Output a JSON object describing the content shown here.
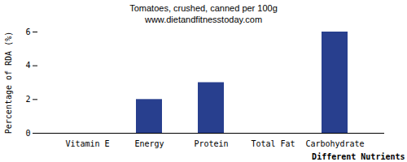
{
  "chart_data": {
    "type": "bar",
    "title": "Tomatoes, crushed, canned per 100g",
    "subtitle": "www.dietandfitnesstoday.com",
    "x_label": "Different Nutrients",
    "y_label": "Percentage of RDA (%)",
    "categories": [
      "Vitamin E",
      "Energy",
      "Protein",
      "Total Fat",
      "Carbohydrate"
    ],
    "values": [
      0,
      2,
      3,
      0,
      6
    ],
    "color": "#283f8e",
    "ylim": [
      0,
      6
    ],
    "yticks": [
      0,
      2,
      4,
      6
    ],
    "grid": false
  }
}
